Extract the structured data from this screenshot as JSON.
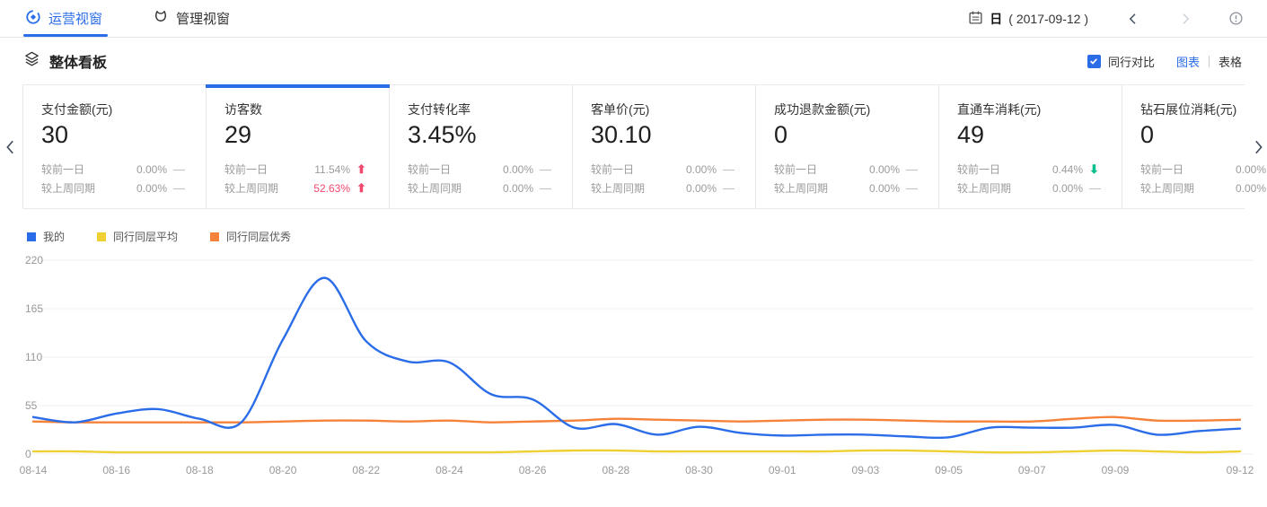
{
  "nav": {
    "tabs": [
      {
        "label": "运营视窗",
        "active": true
      },
      {
        "label": "管理视窗",
        "active": false
      }
    ],
    "date_granularity": "日",
    "date_value": "( 2017-09-12 )"
  },
  "section": {
    "title": "整体看板",
    "compare_checkbox_label": "同行对比",
    "compare_checked": true,
    "view_chart_label": "图表",
    "view_table_label": "表格",
    "active_view": "图表"
  },
  "cards": [
    {
      "title": "支付金额(元)",
      "value": "30",
      "selected": false,
      "deltas": [
        {
          "label": "较前一日",
          "value": "0.00%",
          "direction": "flat",
          "highlight": false
        },
        {
          "label": "较上周同期",
          "value": "0.00%",
          "direction": "flat",
          "highlight": false
        }
      ]
    },
    {
      "title": "访客数",
      "value": "29",
      "selected": true,
      "deltas": [
        {
          "label": "较前一日",
          "value": "11.54%",
          "direction": "up",
          "highlight": false
        },
        {
          "label": "较上周同期",
          "value": "52.63%",
          "direction": "up",
          "highlight": true
        }
      ]
    },
    {
      "title": "支付转化率",
      "value": "3.45%",
      "selected": false,
      "deltas": [
        {
          "label": "较前一日",
          "value": "0.00%",
          "direction": "flat",
          "highlight": false
        },
        {
          "label": "较上周同期",
          "value": "0.00%",
          "direction": "flat",
          "highlight": false
        }
      ]
    },
    {
      "title": "客单价(元)",
      "value": "30.10",
      "selected": false,
      "deltas": [
        {
          "label": "较前一日",
          "value": "0.00%",
          "direction": "flat",
          "highlight": false
        },
        {
          "label": "较上周同期",
          "value": "0.00%",
          "direction": "flat",
          "highlight": false
        }
      ]
    },
    {
      "title": "成功退款金额(元)",
      "value": "0",
      "selected": false,
      "deltas": [
        {
          "label": "较前一日",
          "value": "0.00%",
          "direction": "flat",
          "highlight": false
        },
        {
          "label": "较上周同期",
          "value": "0.00%",
          "direction": "flat",
          "highlight": false
        }
      ]
    },
    {
      "title": "直通车消耗(元)",
      "value": "49",
      "selected": false,
      "deltas": [
        {
          "label": "较前一日",
          "value": "0.44%",
          "direction": "down",
          "highlight": false
        },
        {
          "label": "较上周同期",
          "value": "0.00%",
          "direction": "flat",
          "highlight": false
        }
      ]
    },
    {
      "title": "钻石展位消耗(元)",
      "value": "0",
      "selected": false,
      "deltas": [
        {
          "label": "较前一日",
          "value": "0.00%",
          "direction": "flat",
          "highlight": false
        },
        {
          "label": "较上周同期",
          "value": "0.00%",
          "direction": "flat",
          "highlight": false
        }
      ]
    }
  ],
  "legend": [
    {
      "label": "我的",
      "color": "#2b6de8"
    },
    {
      "label": "同行同层平均",
      "color": "#efd032"
    },
    {
      "label": "同行同层优秀",
      "color": "#f5823b"
    }
  ],
  "chart_data": {
    "type": "line",
    "title": "",
    "xlabel": "",
    "ylabel": "",
    "ylim": [
      0,
      220
    ],
    "yticks": [
      0,
      55,
      110,
      165,
      220
    ],
    "grid": true,
    "legend_position": "top-left",
    "x": [
      "08-14",
      "08-15",
      "08-16",
      "08-17",
      "08-18",
      "08-19",
      "08-20",
      "08-21",
      "08-22",
      "08-23",
      "08-24",
      "08-25",
      "08-26",
      "08-27",
      "08-28",
      "08-29",
      "08-30",
      "08-31",
      "09-01",
      "09-02",
      "09-03",
      "09-04",
      "09-05",
      "09-06",
      "09-07",
      "09-08",
      "09-09",
      "09-10",
      "09-11",
      "09-12"
    ],
    "x_tick_indices": [
      0,
      2,
      4,
      6,
      8,
      10,
      12,
      14,
      16,
      18,
      20,
      22,
      24,
      26,
      29
    ],
    "series": [
      {
        "name": "我的",
        "color": "#2b6de8",
        "values": [
          42,
          36,
          46,
          51,
          40,
          36,
          130,
          200,
          128,
          105,
          104,
          68,
          62,
          30,
          34,
          22,
          31,
          24,
          21,
          22,
          22,
          20,
          19,
          30,
          30,
          30,
          33,
          22,
          26,
          29
        ]
      },
      {
        "name": "同行同层平均",
        "color": "#efd032",
        "values": [
          3,
          3,
          2,
          2,
          2,
          2,
          2,
          2,
          2,
          2,
          2,
          2,
          3,
          4,
          4,
          3,
          3,
          3,
          3,
          3,
          4,
          4,
          3,
          2,
          2,
          3,
          4,
          3,
          2,
          3
        ]
      },
      {
        "name": "同行同层优秀",
        "color": "#f5823b",
        "values": [
          37,
          36,
          36,
          36,
          36,
          36,
          37,
          38,
          38,
          37,
          38,
          36,
          37,
          38,
          40,
          39,
          38,
          37,
          38,
          39,
          39,
          38,
          37,
          37,
          37,
          40,
          42,
          38,
          38,
          39
        ]
      }
    ]
  },
  "colors": {
    "accent": "#2b6de8",
    "up_red": "#f1486e",
    "down_green": "#00bf8e",
    "axis_text": "#999999",
    "gridline": "#f0f1f5"
  }
}
